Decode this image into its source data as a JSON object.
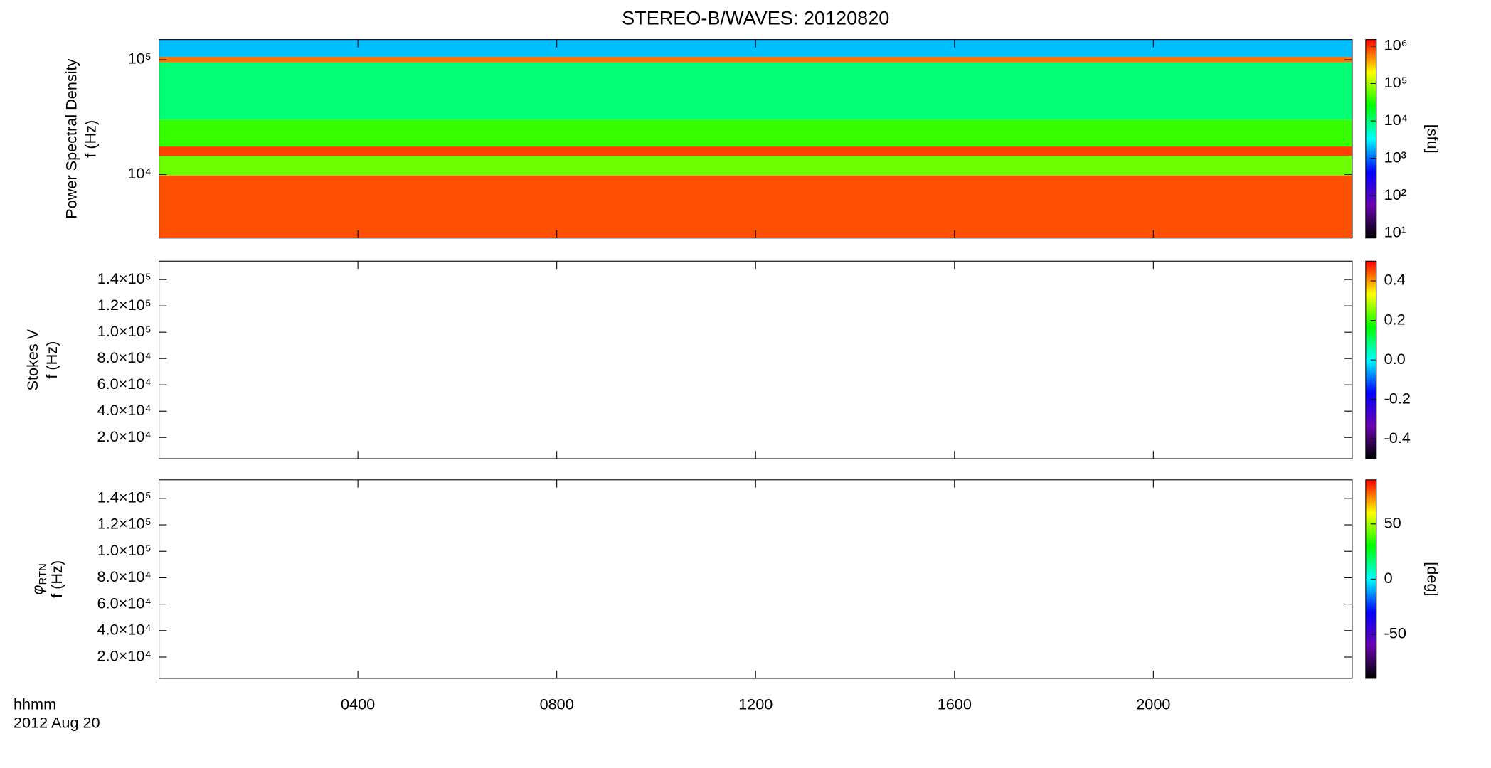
{
  "chart_data": [
    {
      "type": "spectrogram",
      "title": "STEREO-B/WAVES: 20120820",
      "ylabel": "Power Spectral Density",
      "ylabel2": "f (Hz)",
      "ylog": true,
      "ylim": [
        2786,
        150000
      ],
      "yticks": [
        {
          "value": 10000,
          "label": "10⁴"
        },
        {
          "value": 100000,
          "label": "10⁵"
        }
      ],
      "xlim": [
        0,
        24
      ],
      "y_edges": [
        2786,
        9800,
        14500,
        17500,
        30000,
        95000,
        106000,
        150000
      ],
      "z": [
        800000,
        60000,
        900000,
        40000,
        10000,
        600000,
        2000
      ],
      "zlog": true,
      "zlim": [
        7.4,
        1500000
      ],
      "zticks": [
        {
          "value": 10,
          "label": "10¹"
        },
        {
          "value": 100,
          "label": "10²"
        },
        {
          "value": 1000,
          "label": "10³"
        },
        {
          "value": 10000,
          "label": "10⁴"
        },
        {
          "value": 100000,
          "label": "10⁵"
        },
        {
          "value": 1000000,
          "label": "10⁶"
        }
      ],
      "zlabel": "[sfu]",
      "colormap": [
        "#000000",
        "#6a00b0",
        "#0000ff",
        "#00ffff",
        "#00ff00",
        "#ffff00",
        "#ff0000"
      ]
    },
    {
      "type": "spectrogram",
      "ylabel": "Stokes V",
      "ylabel2": "f (Hz)",
      "ylog": false,
      "ylim": [
        3900,
        154000
      ],
      "yticks": [
        {
          "value": 20000,
          "label": "2.0×10⁴"
        },
        {
          "value": 40000,
          "label": "4.0×10⁴"
        },
        {
          "value": 60000,
          "label": "6.0×10⁴"
        },
        {
          "value": 80000,
          "label": "8.0×10⁴"
        },
        {
          "value": 100000,
          "label": "1.0×10⁵"
        },
        {
          "value": 120000,
          "label": "1.2×10⁵"
        },
        {
          "value": 140000,
          "label": "1.4×10⁵"
        }
      ],
      "xlim": [
        0,
        24
      ],
      "zlog": false,
      "zlim": [
        -0.5,
        0.5
      ],
      "zticks": [
        {
          "value": -0.4,
          "label": "-0.4"
        },
        {
          "value": -0.2,
          "label": "-0.2"
        },
        {
          "value": 0,
          "label": "0.0"
        },
        {
          "value": 0.2,
          "label": "0.2"
        },
        {
          "value": 0.4,
          "label": "0.4"
        }
      ],
      "colormap": [
        "#000000",
        "#6a00b0",
        "#0000ff",
        "#00ffff",
        "#00ff00",
        "#ffff00",
        "#ff0000"
      ]
    },
    {
      "type": "spectrogram",
      "ylabel": {
        "symbol": "φ",
        "subscript": "RTN"
      },
      "ylabel2": "f (Hz)",
      "ylog": false,
      "ylim": [
        3900,
        154000
      ],
      "yticks": [
        {
          "value": 20000,
          "label": "2.0×10⁴"
        },
        {
          "value": 40000,
          "label": "4.0×10⁴"
        },
        {
          "value": 60000,
          "label": "6.0×10⁴"
        },
        {
          "value": 80000,
          "label": "8.0×10⁴"
        },
        {
          "value": 100000,
          "label": "1.0×10⁵"
        },
        {
          "value": 120000,
          "label": "1.2×10⁵"
        },
        {
          "value": 140000,
          "label": "1.4×10⁵"
        }
      ],
      "xlim": [
        0,
        24
      ],
      "xticks": [
        {
          "value": 4,
          "label": "0400"
        },
        {
          "value": 8,
          "label": "0800"
        },
        {
          "value": 12,
          "label": "1200"
        },
        {
          "value": 16,
          "label": "1600"
        },
        {
          "value": 20,
          "label": "2000"
        }
      ],
      "xlabel": "hhmm",
      "date": "2012 Aug 20",
      "zlog": false,
      "zlim": [
        -90,
        90
      ],
      "zticks": [
        -50,
        0,
        50
      ],
      "zlabel": "[deg]",
      "colormap": [
        "#000000",
        "#6a00b0",
        "#0000ff",
        "#00ffff",
        "#00ff00",
        "#ffff00",
        "#ff0000"
      ]
    }
  ]
}
